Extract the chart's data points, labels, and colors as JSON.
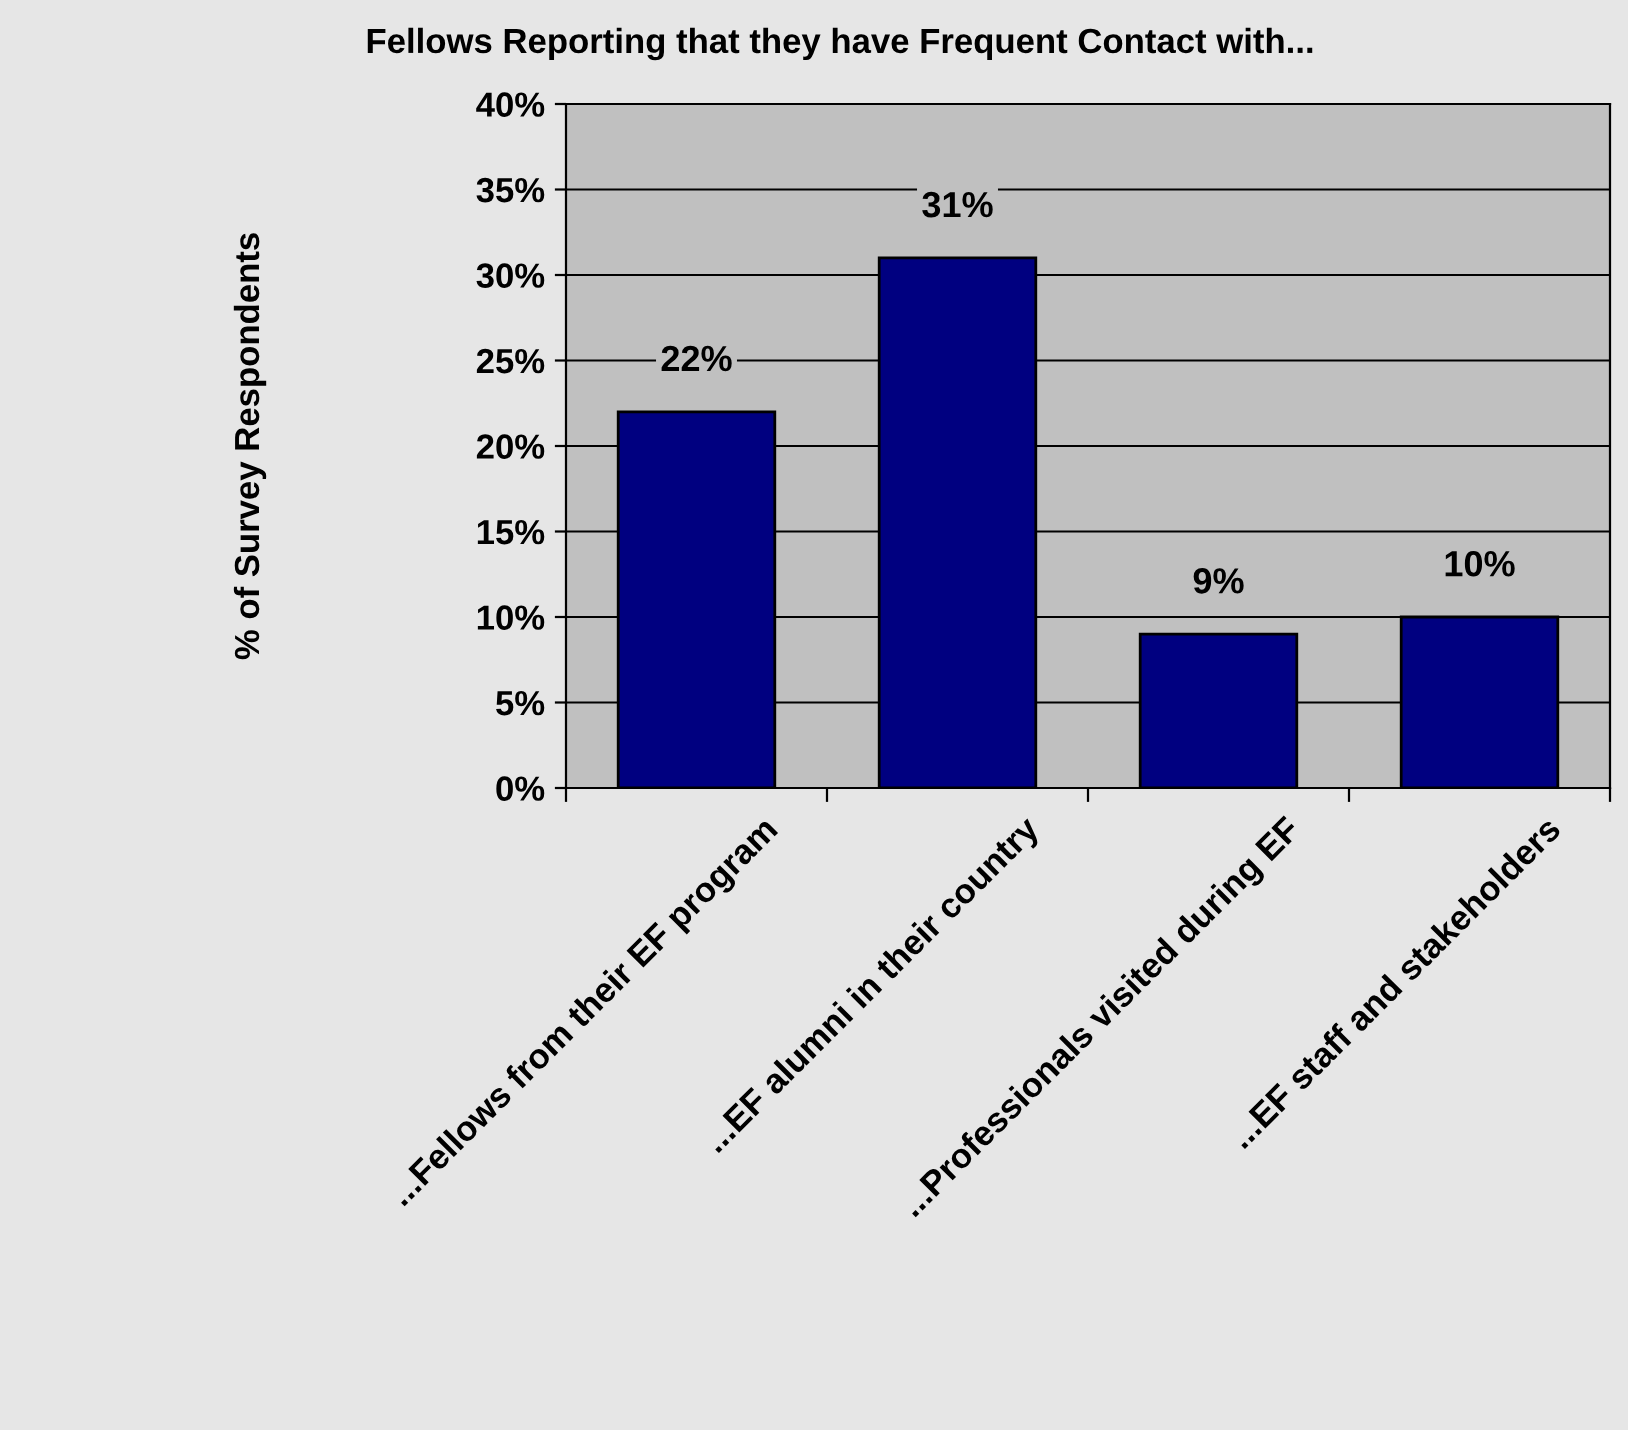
{
  "chart_data": {
    "type": "bar",
    "title": "Fellows Reporting that they have Frequent Contact with...",
    "ylabel": "% of Survey Respondents",
    "categories": [
      "...Fellows from their EF program",
      "...EF alumni in their country",
      "...Professionals visited during EF",
      "...EF staff and stakeholders"
    ],
    "values": [
      22,
      31,
      9,
      10
    ],
    "color": "#000080",
    "value_labels": [
      "22%",
      "31%",
      "9%",
      "10%"
    ],
    "ylim": [
      0,
      40
    ],
    "yticks": [
      {
        "value": 0,
        "label": "0%"
      },
      {
        "value": 5,
        "label": "5%"
      },
      {
        "value": 10,
        "label": "10%"
      },
      {
        "value": 15,
        "label": "15%"
      },
      {
        "value": 20,
        "label": "20%"
      },
      {
        "value": 25,
        "label": "25%"
      },
      {
        "value": 30,
        "label": "30%"
      },
      {
        "value": 35,
        "label": "35%"
      },
      {
        "value": 40,
        "label": "40%"
      }
    ],
    "grid": "y"
  }
}
